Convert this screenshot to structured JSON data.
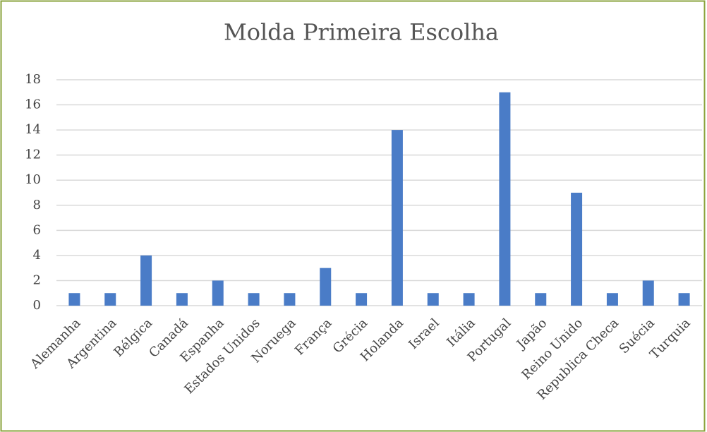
{
  "chart_data": {
    "type": "bar",
    "title": "Molda Primeira Escolha",
    "categories": [
      "Alemanha",
      "Argentina",
      "Bélgica",
      "Canadá",
      "Espanha",
      "Estados Unidos",
      "Noruega",
      "França",
      "Grécia",
      "Holanda",
      "Israel",
      "Itália",
      "Portugal",
      "Japão",
      "Reino Unido",
      "Republica Checa",
      "Suécia",
      "Turquia"
    ],
    "values": [
      1,
      1,
      4,
      1,
      2,
      1,
      1,
      3,
      1,
      14,
      1,
      1,
      17,
      1,
      9,
      1,
      2,
      1
    ],
    "color": "#4a7cc7",
    "ylim": [
      0,
      18
    ],
    "yticks": [
      0,
      2,
      4,
      6,
      8,
      10,
      12,
      14,
      16,
      18
    ],
    "grid": true
  }
}
